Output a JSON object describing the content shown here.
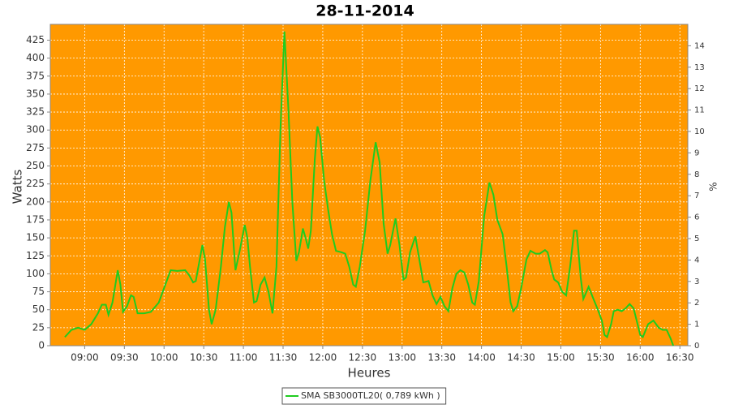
{
  "chart_data": {
    "type": "line",
    "title": "28-11-2014",
    "x_label": "Heures",
    "y_label": "Watts",
    "y2_label": "%",
    "x": [
      "08:45",
      "08:50",
      "08:55",
      "09:00",
      "09:05",
      "09:10",
      "09:13",
      "09:16",
      "09:18",
      "09:21",
      "09:25",
      "09:27",
      "09:29",
      "09:32",
      "09:35",
      "09:37",
      "09:40",
      "09:45",
      "09:50",
      "09:56",
      "10:00",
      "10:05",
      "10:10",
      "10:16",
      "10:19",
      "10:22",
      "10:24",
      "10:27",
      "10:29",
      "10:31",
      "10:34",
      "10:36",
      "10:39",
      "10:43",
      "10:46",
      "10:49",
      "10:51",
      "10:53",
      "10:54",
      "10:57",
      "11:01",
      "11:03",
      "11:05",
      "11:08",
      "11:10",
      "11:13",
      "11:16",
      "11:19",
      "11:22",
      "11:25",
      "11:28",
      "11:31",
      "11:34",
      "11:37",
      "11:40",
      "11:42",
      "11:45",
      "11:47",
      "11:49",
      "11:51",
      "11:54",
      "11:56",
      "11:58",
      "12:01",
      "12:04",
      "12:07",
      "12:10",
      "12:14",
      "12:17",
      "12:20",
      "12:23",
      "12:25",
      "12:28",
      "12:32",
      "12:36",
      "12:40",
      "12:43",
      "12:46",
      "12:49",
      "12:51",
      "12:55",
      "12:58",
      "13:01",
      "13:03",
      "13:06",
      "13:10",
      "13:13",
      "13:16",
      "13:20",
      "13:23",
      "13:26",
      "13:29",
      "13:32",
      "13:35",
      "13:38",
      "13:41",
      "13:44",
      "13:47",
      "13:50",
      "13:53",
      "13:55",
      "13:58",
      "14:02",
      "14:06",
      "14:09",
      "14:12",
      "14:16",
      "14:19",
      "14:22",
      "14:24",
      "14:27",
      "14:30",
      "14:34",
      "14:37",
      "14:41",
      "14:44",
      "14:48",
      "14:50",
      "14:53",
      "14:55",
      "14:58",
      "15:01",
      "15:04",
      "15:07",
      "15:10",
      "15:12",
      "15:15",
      "15:17",
      "15:21",
      "15:24",
      "15:28",
      "15:31",
      "15:33",
      "15:35",
      "15:38",
      "15:40",
      "15:43",
      "15:46",
      "15:49",
      "15:52",
      "15:55",
      "15:58",
      "16:00",
      "16:02",
      "16:06",
      "16:10",
      "16:14",
      "16:17",
      "16:20",
      "16:23",
      "16:25"
    ],
    "series": [
      {
        "name": "SMA SB3000TL20( 0,789 kWh )",
        "color": "#1fcc1f",
        "values": [
          12,
          22,
          25,
          22,
          30,
          45,
          57,
          57,
          43,
          60,
          105,
          85,
          47,
          55,
          70,
          68,
          45,
          45,
          47,
          60,
          80,
          105,
          104,
          105,
          98,
          88,
          90,
          120,
          140,
          120,
          50,
          30,
          50,
          110,
          165,
          200,
          185,
          130,
          105,
          130,
          168,
          150,
          110,
          60,
          62,
          85,
          95,
          75,
          45,
          110,
          300,
          437,
          330,
          200,
          118,
          130,
          163,
          150,
          135,
          160,
          260,
          305,
          290,
          230,
          190,
          155,
          132,
          130,
          128,
          110,
          85,
          82,
          110,
          160,
          230,
          283,
          255,
          170,
          128,
          140,
          177,
          140,
          92,
          95,
          130,
          152,
          120,
          88,
          90,
          70,
          58,
          68,
          55,
          48,
          80,
          100,
          105,
          102,
          85,
          60,
          57,
          90,
          180,
          227,
          210,
          175,
          155,
          110,
          60,
          48,
          55,
          80,
          120,
          132,
          128,
          128,
          133,
          130,
          105,
          92,
          88,
          75,
          70,
          110,
          160,
          160,
          95,
          65,
          82,
          68,
          50,
          35,
          15,
          12,
          30,
          48,
          50,
          48,
          52,
          58,
          52,
          30,
          15,
          12,
          30,
          35,
          25,
          22,
          22,
          10,
          0
        ]
      }
    ],
    "xlim": [
      "08:34",
      "16:36"
    ],
    "xticks": [
      "09:00",
      "09:30",
      "10:00",
      "10:30",
      "11:00",
      "11:30",
      "12:00",
      "12:30",
      "13:00",
      "13:30",
      "14:00",
      "14:30",
      "15:00",
      "15:30",
      "16:00",
      "16:30"
    ],
    "ylim": [
      0,
      447
    ],
    "yticks": [
      0,
      25,
      50,
      75,
      100,
      125,
      150,
      175,
      200,
      225,
      250,
      275,
      300,
      325,
      350,
      375,
      400,
      425
    ],
    "y2lim": [
      0,
      15
    ],
    "y2ticks": [
      0,
      1,
      2,
      3,
      4,
      5,
      6,
      7,
      8,
      9,
      10,
      11,
      12,
      13,
      14
    ],
    "grid": true,
    "background": "#ff9900",
    "legend": "bottom"
  }
}
